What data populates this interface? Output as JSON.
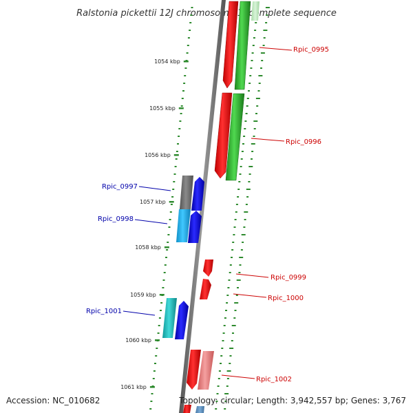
{
  "title": "Ralstonia pickettii 12J chromosome 1, complete sequence",
  "footer": {
    "accession": "Accession: NC_010682",
    "topology": "Topology: circular; Length: 3,942,557 bp; Genes: 3,767"
  },
  "ticks": [
    {
      "label": "1054 kbp"
    },
    {
      "label": "1055 kbp"
    },
    {
      "label": "1056 kbp"
    },
    {
      "label": "1057 kbp"
    },
    {
      "label": "1058 kbp"
    },
    {
      "label": "1059 kbp"
    },
    {
      "label": "1060 kbp"
    },
    {
      "label": "1061 kbp"
    }
  ],
  "gene_labels": [
    {
      "name": "Rpic_0995",
      "color": "#cc0000"
    },
    {
      "name": "Rpic_0996",
      "color": "#cc0000"
    },
    {
      "name": "Rpic_0997",
      "color": "#0000aa"
    },
    {
      "name": "Rpic_0998",
      "color": "#0000aa"
    },
    {
      "name": "Rpic_0999",
      "color": "#cc0000"
    },
    {
      "name": "Rpic_1000",
      "color": "#cc0000"
    },
    {
      "name": "Rpic_1001",
      "color": "#0000aa"
    },
    {
      "name": "Rpic_1002",
      "color": "#cc0000"
    }
  ],
  "colors": {
    "backbone": "#7a7a7a",
    "dots": "#2d8a2d",
    "gene_red": "#ff1010",
    "gene_green": "#3cc23c",
    "gene_blue": "#1010ee",
    "gene_cyan": "#20b8e8",
    "gene_teal": "#20c0c0",
    "gene_gray": "#707070",
    "gene_pink": "#f08080"
  }
}
